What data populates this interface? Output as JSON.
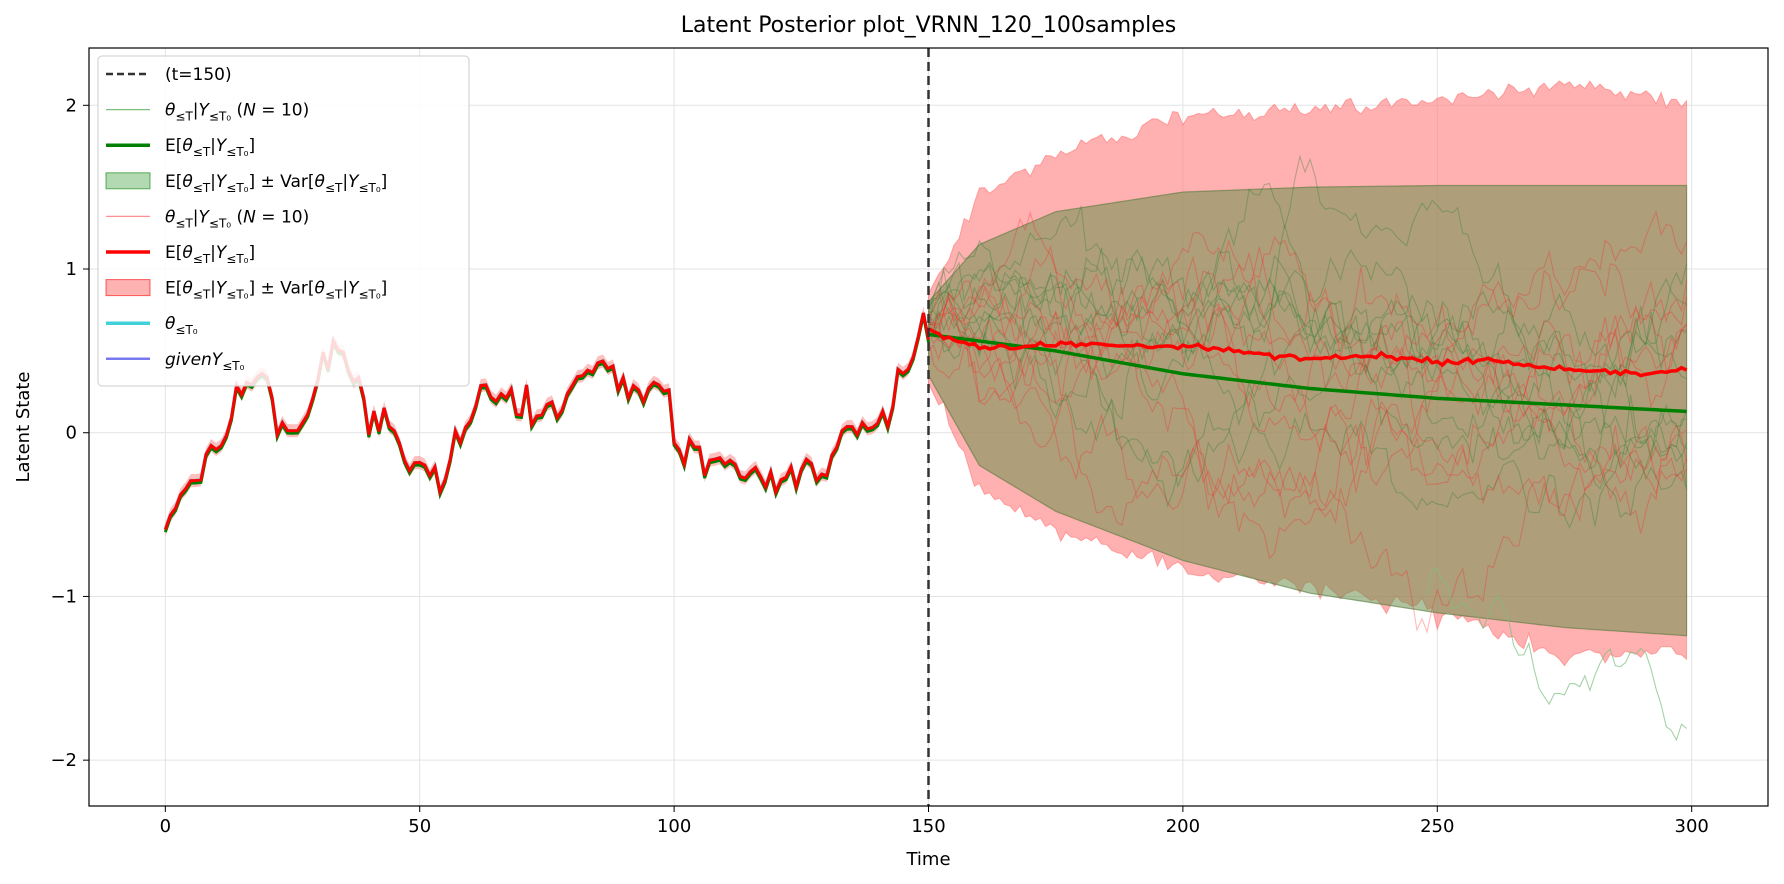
{
  "chart_data": {
    "type": "line",
    "title": "Latent Posterior plot_VRNN_120_100samples",
    "xlabel": "Time",
    "ylabel": "Latent State",
    "xlim": [
      -15,
      315
    ],
    "ylim": [
      -2.28,
      2.35
    ],
    "xticks": [
      0,
      50,
      100,
      150,
      200,
      250,
      300
    ],
    "yticks": [
      -2,
      -1,
      0,
      1,
      2
    ],
    "xtick_labels": [
      "0",
      "50",
      "100",
      "150",
      "200",
      "250",
      "300"
    ],
    "ytick_labels": [
      "−2",
      "−1",
      "0",
      "1",
      "2"
    ],
    "grid": true,
    "legend_position": "upper left",
    "vline": {
      "x": 150,
      "label": "(t=150)",
      "style": "dashed",
      "color": "#333333"
    },
    "colors": {
      "green": "#008000",
      "green_fill": "#7fbf7f",
      "red": "#ff0000",
      "red_fill": "#ff7f7f",
      "brown_overlap": "#b5836b",
      "cyan": "#40d0d8",
      "blue": "#7878f0"
    },
    "observed": {
      "x_start": 0,
      "x_end": 150,
      "keypoints": [
        [
          0,
          -0.58
        ],
        [
          2,
          -0.45
        ],
        [
          4,
          -0.33
        ],
        [
          6,
          -0.28
        ],
        [
          7,
          -0.3
        ],
        [
          8,
          -0.12
        ],
        [
          9,
          -0.09
        ],
        [
          11,
          -0.09
        ],
        [
          13,
          0.08
        ],
        [
          14,
          0.3
        ],
        [
          15,
          0.22
        ],
        [
          16,
          0.32
        ],
        [
          17,
          0.28
        ],
        [
          18,
          0.35
        ],
        [
          20,
          0.35
        ],
        [
          21,
          0.2
        ],
        [
          22,
          0.0
        ],
        [
          23,
          0.05
        ],
        [
          25,
          0.0
        ],
        [
          27,
          0.05
        ],
        [
          29,
          0.2
        ],
        [
          31,
          0.48
        ],
        [
          32,
          0.4
        ],
        [
          33,
          0.55
        ],
        [
          35,
          0.48
        ],
        [
          37,
          0.3
        ],
        [
          38,
          0.35
        ],
        [
          39,
          0.2
        ],
        [
          40,
          0.0
        ],
        [
          41,
          0.12
        ],
        [
          42,
          0.02
        ],
        [
          43,
          0.14
        ],
        [
          44,
          0.05
        ],
        [
          45,
          0.0
        ],
        [
          46,
          -0.05
        ],
        [
          47,
          -0.18
        ],
        [
          48,
          -0.22
        ],
        [
          50,
          -0.17
        ],
        [
          52,
          -0.25
        ],
        [
          53,
          -0.22
        ],
        [
          54,
          -0.35
        ],
        [
          55,
          -0.3
        ],
        [
          57,
          0.0
        ],
        [
          58,
          -0.05
        ],
        [
          59,
          0.02
        ],
        [
          61,
          0.15
        ],
        [
          62,
          0.3
        ],
        [
          63,
          0.28
        ],
        [
          65,
          0.18
        ],
        [
          66,
          0.25
        ],
        [
          67,
          0.2
        ],
        [
          68,
          0.28
        ],
        [
          69,
          0.1
        ],
        [
          70,
          0.12
        ],
        [
          71,
          0.28
        ],
        [
          72,
          0.06
        ],
        [
          74,
          0.12
        ],
        [
          76,
          0.2
        ],
        [
          77,
          0.08
        ],
        [
          78,
          0.15
        ],
        [
          80,
          0.3
        ],
        [
          82,
          0.36
        ],
        [
          84,
          0.38
        ],
        [
          86,
          0.45
        ],
        [
          87,
          0.38
        ],
        [
          88,
          0.42
        ],
        [
          89,
          0.25
        ],
        [
          90,
          0.35
        ],
        [
          91,
          0.2
        ],
        [
          92,
          0.3
        ],
        [
          94,
          0.2
        ],
        [
          96,
          0.32
        ],
        [
          97,
          0.28
        ],
        [
          99,
          0.25
        ],
        [
          100,
          -0.05
        ],
        [
          102,
          -0.18
        ],
        [
          103,
          -0.05
        ],
        [
          105,
          -0.1
        ],
        [
          106,
          -0.25
        ],
        [
          107,
          -0.18
        ],
        [
          108,
          -0.15
        ],
        [
          110,
          -0.18
        ],
        [
          112,
          -0.18
        ],
        [
          113,
          -0.28
        ],
        [
          115,
          -0.25
        ],
        [
          116,
          -0.2
        ],
        [
          117,
          -0.28
        ],
        [
          118,
          -0.32
        ],
        [
          119,
          -0.25
        ],
        [
          120,
          -0.35
        ],
        [
          121,
          -0.3
        ],
        [
          123,
          -0.22
        ],
        [
          124,
          -0.32
        ],
        [
          126,
          -0.15
        ],
        [
          127,
          -0.2
        ],
        [
          128,
          -0.28
        ],
        [
          130,
          -0.25
        ],
        [
          131,
          -0.15
        ],
        [
          133,
          0.0
        ],
        [
          134,
          0.05
        ],
        [
          136,
          0.0
        ],
        [
          137,
          0.05
        ],
        [
          139,
          0.02
        ],
        [
          141,
          0.12
        ],
        [
          142,
          0.05
        ],
        [
          143,
          0.15
        ],
        [
          144,
          0.4
        ],
        [
          145,
          0.35
        ],
        [
          147,
          0.45
        ],
        [
          148,
          0.6
        ],
        [
          149,
          0.72
        ],
        [
          150,
          0.58
        ]
      ]
    },
    "series": [
      {
        "name": "(t=150)",
        "kind": "vline",
        "color": "#333333"
      },
      {
        "name": "θ≤T|Y≤T0 (N = 10)",
        "kind": "samples",
        "color": "#008000",
        "count": 10
      },
      {
        "name": "E[θ≤T|Y≤T0]",
        "kind": "mean",
        "color": "#008000",
        "forecast_keypoints": [
          [
            150,
            0.6
          ],
          [
            175,
            0.5
          ],
          [
            200,
            0.36
          ],
          [
            225,
            0.27
          ],
          [
            250,
            0.21
          ],
          [
            275,
            0.17
          ],
          [
            299,
            0.13
          ]
        ]
      },
      {
        "name": "E[θ≤T|Y≤T0] ± Var[θ≤T|Y≤T0]",
        "kind": "band",
        "color": "#7fbf7f",
        "band_keypoints": [
          [
            150,
            0.35,
            0.8
          ],
          [
            160,
            -0.2,
            1.15
          ],
          [
            175,
            -0.48,
            1.35
          ],
          [
            200,
            -0.78,
            1.47
          ],
          [
            225,
            -0.98,
            1.5
          ],
          [
            250,
            -1.1,
            1.51
          ],
          [
            275,
            -1.19,
            1.51
          ],
          [
            299,
            -1.24,
            1.51
          ]
        ]
      },
      {
        "name": "θ≤T|Y≤T0 (N = 10)",
        "kind": "samples",
        "color": "#ff0000",
        "count": 10
      },
      {
        "name": "E[θ≤T|Y≤T0]",
        "kind": "mean",
        "color": "#ff0000",
        "forecast_keypoints": [
          [
            150,
            0.62
          ],
          [
            160,
            0.52
          ],
          [
            170,
            0.53
          ],
          [
            175,
            0.54
          ],
          [
            200,
            0.53
          ],
          [
            210,
            0.5
          ],
          [
            225,
            0.45
          ],
          [
            240,
            0.47
          ],
          [
            250,
            0.43
          ],
          [
            260,
            0.45
          ],
          [
            270,
            0.4
          ],
          [
            280,
            0.38
          ],
          [
            290,
            0.36
          ],
          [
            299,
            0.39
          ]
        ]
      },
      {
        "name": "E[θ≤T|Y≤T0] ± Var[θ≤T|Y≤T0]",
        "kind": "band",
        "color": "#ff7f7f",
        "band_keypoints": [
          [
            150,
            0.3,
            0.85
          ],
          [
            160,
            -0.35,
            1.45
          ],
          [
            175,
            -0.6,
            1.7
          ],
          [
            200,
            -0.82,
            1.93
          ],
          [
            225,
            -0.95,
            1.98
          ],
          [
            250,
            -1.08,
            2.03
          ],
          [
            275,
            -1.38,
            2.13
          ],
          [
            299,
            -1.32,
            2.02
          ]
        ]
      },
      {
        "name": "θ≤T0",
        "kind": "observed",
        "color": "#40d0d8"
      },
      {
        "name": "givenY≤T0",
        "kind": "observed",
        "color": "#7878f0"
      }
    ]
  }
}
